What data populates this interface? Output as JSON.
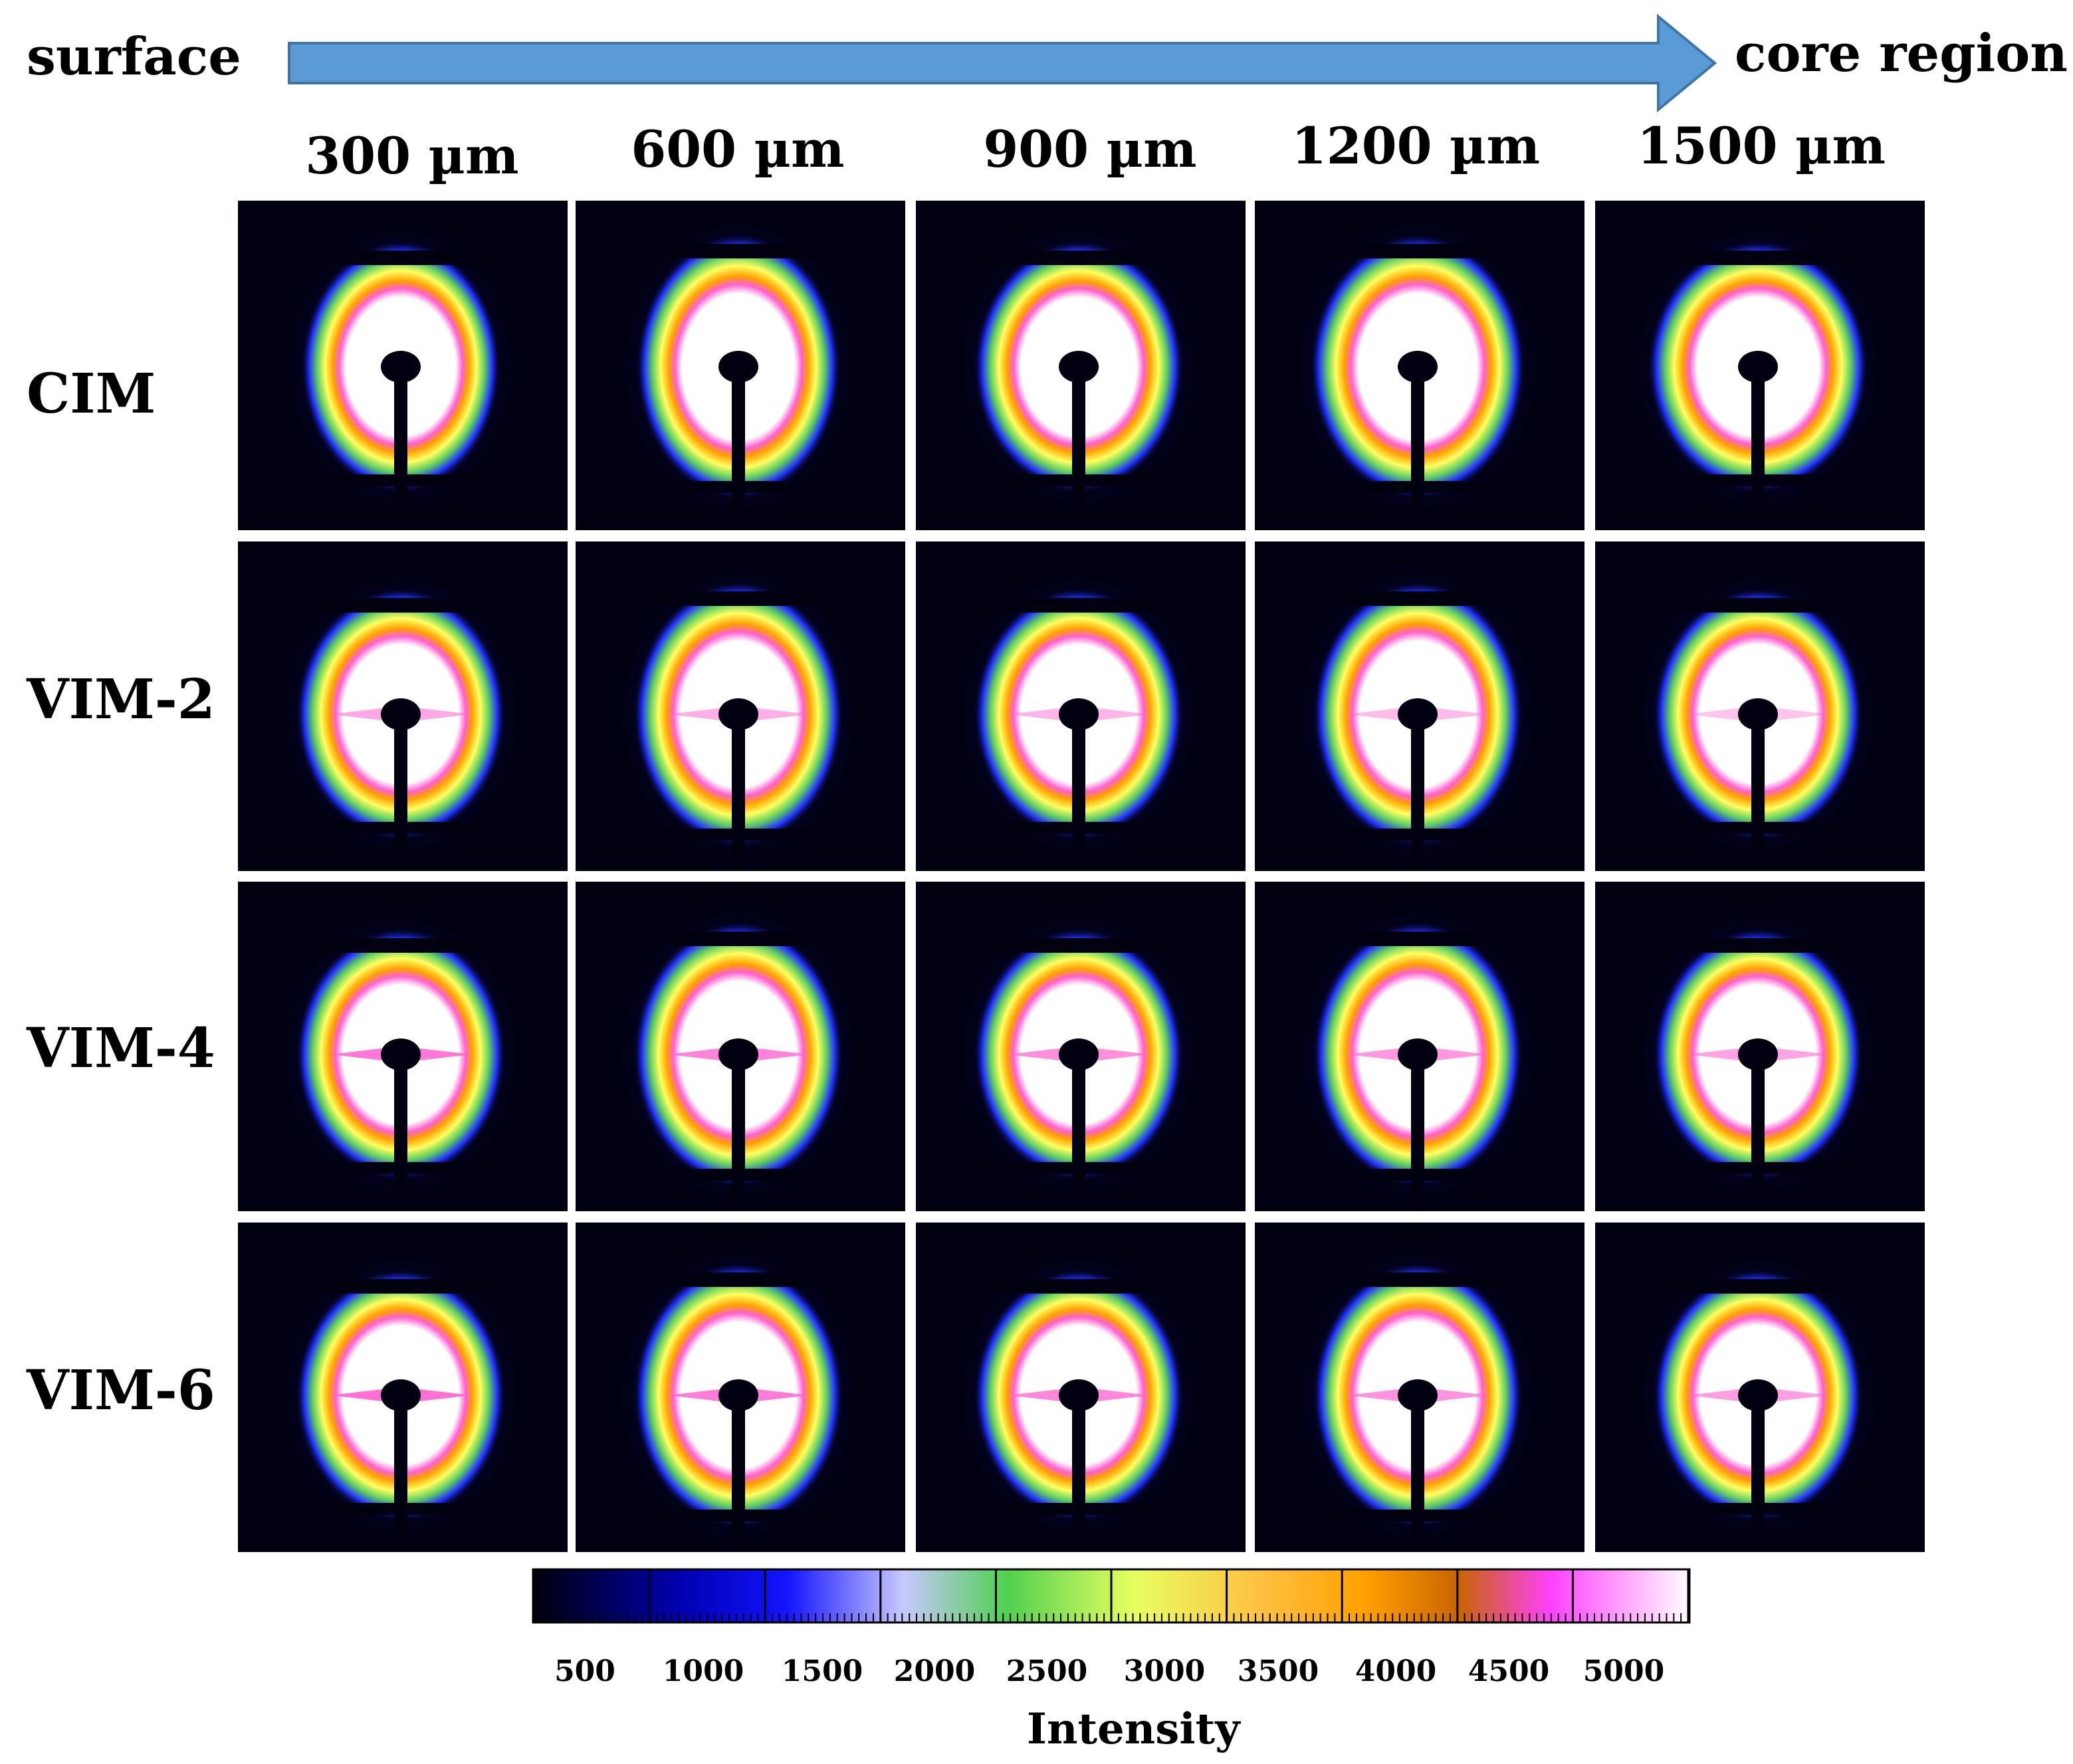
{
  "header": {
    "left_label": "surface",
    "right_label": "core region",
    "arrow_color": "#5b9bd5"
  },
  "columns": [
    "300 µm",
    "600 µm",
    "900 µm",
    "1200 µm",
    "1500 µm"
  ],
  "rows": [
    "CIM",
    "VIM-2",
    "VIM-4",
    "VIM-6"
  ],
  "colorbar": {
    "title": "Intensity",
    "ticks": [
      "500",
      "1000",
      "1500",
      "2000",
      "2500",
      "3000",
      "3500",
      "4000",
      "4500",
      "5000"
    ],
    "stops": [
      "#00000a",
      "#0000b4",
      "#1414ff",
      "#c8c8ff",
      "#50d050",
      "#ffff60",
      "#ffa000",
      "#c86400",
      "#ff40ff",
      "#ffffff"
    ]
  }
}
